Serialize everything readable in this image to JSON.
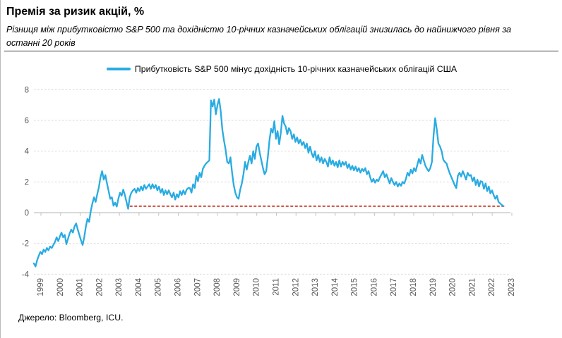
{
  "page": {
    "title": "Премія за ризик акцій, %",
    "subtitle_line1": "Різниця між прибутковістю S&P 500 та дохідністю 10-річних казначейських облігацій знизилась до найнижчого рівня за",
    "subtitle_line2": "останні 20 років",
    "source": "Джерело: Bloomberg, ICU."
  },
  "colors": {
    "series_line": "#29ABE2",
    "reference_line": "#C9382C",
    "grid": "#D9D9D9",
    "zero_axis": "#C3C3C3",
    "tick_label": "#595959",
    "rule": "#3A3A3A"
  },
  "chart_data": {
    "type": "line",
    "title": "Премія за ризик акцій, %",
    "xlabel": "",
    "ylabel": "",
    "ylim": [
      -4,
      8
    ],
    "grid": "horizontal-dashed",
    "legend_position": "top-center",
    "y_ticks": [
      8,
      6,
      4,
      2,
      0,
      -2,
      -4
    ],
    "x_ticks": [
      "1999",
      "2000",
      "2001",
      "2002",
      "2003",
      "2004",
      "2005",
      "2006",
      "2007",
      "2008",
      "2009",
      "2010",
      "2011",
      "2012",
      "2013",
      "2014",
      "2015",
      "2016",
      "2017",
      "2018",
      "2019",
      "2020",
      "2021",
      "2022",
      "2023"
    ],
    "series": [
      {
        "name": "Прибутковість S&P 500 мінус дохідність 10-річних казначейських облігацій США",
        "color": "#29ABE2",
        "start": "1999-01",
        "frequency": "monthly",
        "values": [
          -3.3,
          -3.5,
          -3.1,
          -2.8,
          -2.55,
          -2.7,
          -2.4,
          -2.55,
          -2.3,
          -2.45,
          -2.2,
          -2.3,
          -2.1,
          -1.9,
          -1.6,
          -1.85,
          -1.55,
          -1.3,
          -1.6,
          -1.45,
          -2.05,
          -1.7,
          -1.35,
          -1.1,
          -1.3,
          -0.9,
          -0.7,
          -1.1,
          -1.45,
          -1.8,
          -2.1,
          -1.6,
          -0.9,
          -0.4,
          -0.6,
          0.1,
          0.6,
          1.0,
          0.7,
          1.2,
          1.65,
          2.3,
          2.7,
          2.15,
          2.45,
          1.9,
          1.4,
          0.9,
          1.0,
          0.45,
          0.65,
          0.4,
          0.9,
          1.3,
          1.1,
          1.5,
          1.15,
          0.7,
          0.25,
          1.0,
          1.3,
          1.45,
          1.55,
          1.3,
          1.6,
          1.4,
          1.7,
          1.45,
          1.8,
          1.55,
          1.7,
          1.85,
          1.55,
          1.85,
          1.6,
          1.8,
          1.45,
          1.7,
          1.3,
          1.55,
          1.15,
          1.45,
          1.2,
          1.45,
          1.2,
          1.0,
          1.3,
          0.85,
          1.2,
          1.0,
          1.4,
          1.15,
          1.45,
          1.2,
          1.5,
          1.6,
          1.6,
          1.3,
          1.85,
          1.6,
          2.4,
          2.05,
          2.6,
          2.3,
          2.85,
          3.05,
          3.2,
          3.3,
          3.4,
          7.3,
          6.9,
          7.35,
          6.4,
          7.0,
          7.4,
          6.6,
          5.4,
          4.7,
          4.1,
          3.3,
          3.2,
          3.6,
          2.6,
          1.8,
          1.3,
          1.0,
          0.9,
          1.5,
          1.9,
          2.5,
          3.3,
          2.8,
          3.3,
          3.7,
          3.2,
          4.0,
          3.5,
          4.3,
          4.5,
          3.9,
          3.4,
          2.9,
          2.5,
          2.7,
          3.6,
          4.7,
          5.45,
          5.2,
          5.95,
          4.8,
          5.3,
          4.45,
          5.2,
          6.3,
          5.8,
          5.6,
          5.1,
          5.5,
          5.3,
          4.8,
          5.1,
          4.6,
          4.9,
          4.5,
          4.75,
          4.4,
          4.6,
          4.2,
          4.5,
          3.9,
          4.3,
          3.85,
          3.6,
          4.0,
          3.4,
          3.75,
          3.3,
          3.6,
          3.2,
          3.5,
          3.3,
          3.0,
          3.6,
          3.15,
          3.4,
          3.05,
          3.3,
          2.95,
          3.4,
          3.0,
          3.3,
          3.1,
          3.3,
          2.9,
          3.15,
          2.8,
          3.05,
          2.75,
          3.0,
          2.7,
          2.9,
          2.6,
          2.85,
          2.7,
          2.9,
          2.5,
          2.7,
          2.3,
          2.0,
          2.2,
          1.95,
          2.15,
          2.05,
          2.3,
          2.5,
          2.7,
          2.3,
          2.5,
          2.2,
          1.9,
          2.25,
          2.0,
          1.8,
          2.0,
          1.7,
          1.9,
          1.75,
          2.0,
          1.9,
          2.2,
          2.6,
          2.4,
          2.8,
          2.55,
          2.9,
          2.7,
          3.1,
          3.5,
          3.2,
          3.75,
          3.4,
          3.05,
          2.85,
          2.7,
          2.9,
          3.3,
          5.0,
          6.15,
          5.4,
          4.5,
          4.3,
          4.0,
          3.45,
          3.3,
          3.2,
          2.85,
          2.55,
          2.3,
          2.05,
          1.8,
          1.6,
          2.4,
          2.6,
          2.35,
          2.7,
          2.45,
          2.15,
          2.6,
          2.4,
          2.45,
          2.05,
          2.3,
          1.8,
          2.15,
          1.7,
          2.05,
          2.0,
          1.55,
          1.9,
          1.4,
          1.7,
          1.25,
          1.45,
          1.15,
          0.9,
          1.1,
          0.7,
          0.6,
          0.5,
          0.42
        ]
      }
    ],
    "reference_line": {
      "value": 0.42,
      "color": "#C9382C",
      "style": "dashed",
      "start_index": 59,
      "meaning": "current level — lowest of the last 20 years"
    }
  }
}
